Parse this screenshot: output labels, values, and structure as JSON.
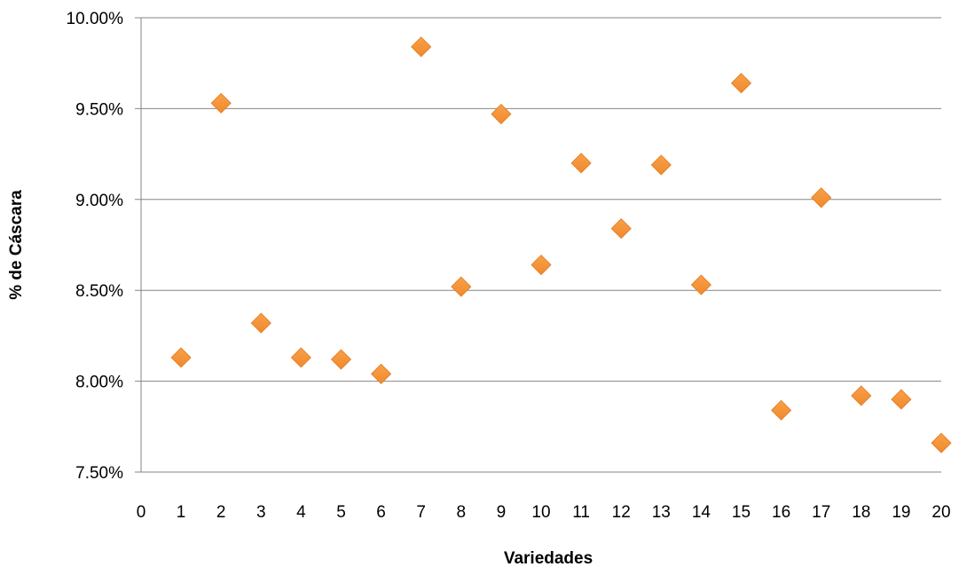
{
  "chart_data": {
    "type": "scatter",
    "title": "",
    "xlabel": "Variedades",
    "ylabel": "% de Cáscara",
    "xlim": [
      0,
      20
    ],
    "ylim": [
      0.075,
      0.1
    ],
    "x_ticks": [
      "0",
      "1",
      "2",
      "3",
      "4",
      "5",
      "6",
      "7",
      "8",
      "9",
      "10",
      "11",
      "12",
      "13",
      "14",
      "15",
      "16",
      "17",
      "18",
      "19",
      "20"
    ],
    "y_ticks": [
      "7.50%",
      "8.00%",
      "8.50%",
      "9.00%",
      "9.50%",
      "10.00%"
    ],
    "y_tick_values": [
      0.075,
      0.08,
      0.085,
      0.09,
      0.095,
      0.1
    ],
    "grid": "horizontal",
    "legend": "none",
    "marker": "diamond",
    "color": "#F08A2C",
    "series": [
      {
        "x": [
          1,
          2,
          3,
          4,
          5,
          6,
          7,
          8,
          9,
          10,
          11,
          12,
          13,
          14,
          15,
          16,
          17,
          18,
          19,
          20
        ],
        "values": [
          0.0813,
          0.0953,
          0.0832,
          0.0813,
          0.0812,
          0.0804,
          0.0984,
          0.0852,
          0.0947,
          0.0864,
          0.092,
          0.0884,
          0.0919,
          0.0853,
          0.0964,
          0.0784,
          0.0901,
          0.0792,
          0.079,
          0.0766
        ]
      }
    ]
  }
}
